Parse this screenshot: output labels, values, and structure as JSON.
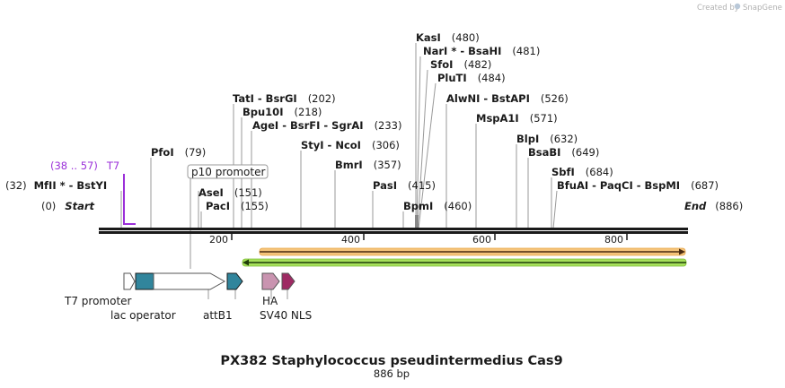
{
  "header": {
    "credit": "Created by",
    "brand": "SnapGene"
  },
  "title": {
    "name": "PX382 Staphylococcus pseudintermedius Cas9",
    "length": "886 bp"
  },
  "ruler": {
    "ticks": [
      "200",
      "400",
      "600",
      "800"
    ]
  },
  "ends": {
    "start_pos": "(0)",
    "start_label": "Start",
    "end_label": "End",
    "end_pos": "(886)"
  },
  "sites": [
    {
      "name": "KasI",
      "pos": "(480)"
    },
    {
      "name": "NarI * - BsaHI",
      "pos": "(481)"
    },
    {
      "name": "SfoI",
      "pos": "(482)"
    },
    {
      "name": "PluTI",
      "pos": "(484)"
    },
    {
      "name": "AlwNI - BstAPI",
      "pos": "(526)"
    },
    {
      "name": "MspA1I",
      "pos": "(571)"
    },
    {
      "name": "BlpI",
      "pos": "(632)"
    },
    {
      "name": "BsaBI",
      "pos": "(649)"
    },
    {
      "name": "SbfI",
      "pos": "(684)"
    },
    {
      "name": "BfuAI - PaqCI - BspMI",
      "pos": "(687)"
    },
    {
      "name": "TatI - BsrGI",
      "pos": "(202)"
    },
    {
      "name": "Bpu10I",
      "pos": "(218)"
    },
    {
      "name": "AgeI - BsrFI - SgrAI",
      "pos": "(233)"
    },
    {
      "name": "StyI - NcoI",
      "pos": "(306)"
    },
    {
      "name": "BmrI",
      "pos": "(357)"
    },
    {
      "name": "PasI",
      "pos": "(415)"
    },
    {
      "name": "BpmI",
      "pos": "(460)"
    },
    {
      "name": "PfoI",
      "pos": "(79)"
    },
    {
      "name": "AseI",
      "pos": "(151)"
    },
    {
      "name": "PacI",
      "pos": "(155)"
    },
    {
      "name": "MfII * - BstYI",
      "pos": "(32)"
    }
  ],
  "primer": {
    "label": "T7",
    "range": "(38 .. 57)"
  },
  "features": {
    "t7_promoter": "T7 promoter",
    "lac_operator": "lac operator",
    "p10_promoter": "p10 promoter",
    "attB1": "attB1",
    "ha": "HA",
    "sv40_nls": "SV40 NLS"
  },
  "colors": {
    "primer": "#9b30d9",
    "lac_operator": "#31859c",
    "attB1": "#31859c",
    "ha": "#c994b0",
    "sv40_nls": "#9e2a63",
    "orf_forward_fill": "#f5c47a",
    "orf_reverse_fill": "#a6e05a"
  }
}
